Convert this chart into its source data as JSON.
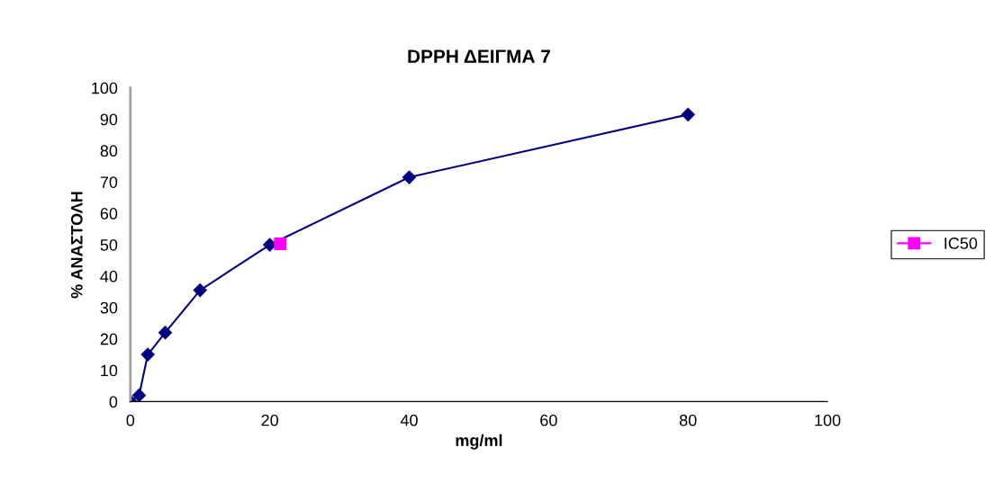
{
  "chart_data": {
    "type": "line",
    "title": "DPPH ΔΕΙΓΜΑ 7",
    "xlabel": "mg/ml",
    "ylabel": "% ΑΝΑΣΤΟΛΗ",
    "series": [
      {
        "color": "#000080",
        "marker": "diamond",
        "x": [
          0,
          1.25,
          2.5,
          5,
          10,
          20,
          40,
          80
        ],
        "values": [
          0,
          2,
          15,
          22,
          35.5,
          50,
          71.5,
          91.5
        ]
      },
      {
        "name": "IC50",
        "color": "#ff00ff",
        "marker": "square",
        "x": [
          21.5
        ],
        "values": [
          50.3
        ]
      }
    ],
    "xlim": [
      0,
      100
    ],
    "xticks": [
      0,
      20,
      40,
      60,
      80,
      100
    ],
    "ylim": [
      0,
      100
    ],
    "yticks": [
      0,
      10,
      20,
      30,
      40,
      50,
      60,
      70,
      80,
      90,
      100
    ],
    "grid": false,
    "legend": "right"
  }
}
